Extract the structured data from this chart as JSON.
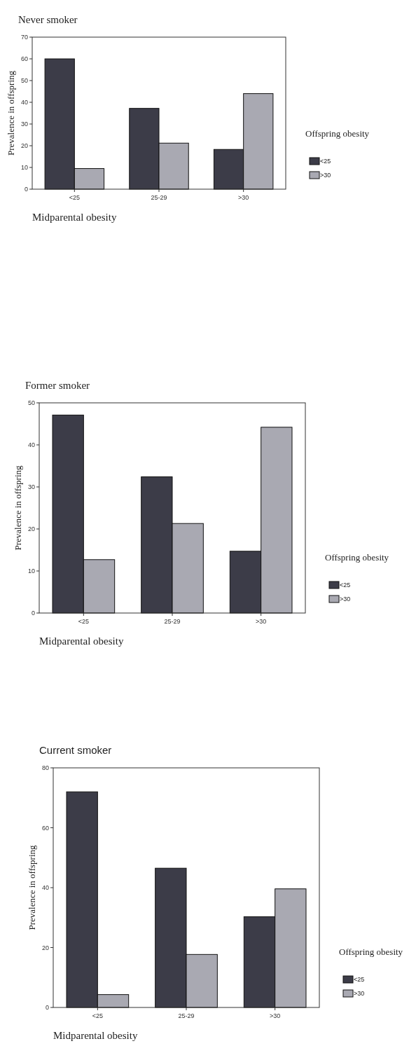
{
  "chart_data": [
    {
      "type": "bar",
      "title": "Never smoker",
      "xlabel": "Midparental obesity",
      "ylabel": "Prevalence in offspring",
      "legend_title": "Offspring obesity",
      "legend": "right",
      "categories": [
        "<25",
        "25-29",
        ">30"
      ],
      "ylim": [
        0,
        70
      ],
      "yticks": [
        0,
        10,
        20,
        30,
        40,
        50,
        60,
        70
      ],
      "series": [
        {
          "name": "<25",
          "color": "#3c3c48",
          "values": [
            60,
            37.2,
            18.3
          ]
        },
        {
          "name": ">30",
          "color": "#a9a9b2",
          "values": [
            9.5,
            21.2,
            44
          ]
        }
      ]
    },
    {
      "type": "bar",
      "title": "Former smoker",
      "xlabel": "Midparental obesity",
      "ylabel": "Prevalence in offspring",
      "legend_title": "Offspring obesity",
      "legend": "right",
      "categories": [
        "<25",
        "25-29",
        ">30"
      ],
      "ylim": [
        0,
        50
      ],
      "yticks": [
        0,
        10,
        20,
        30,
        40,
        50
      ],
      "series": [
        {
          "name": "<25",
          "color": "#3c3c48",
          "values": [
            47.1,
            32.4,
            14.7
          ]
        },
        {
          "name": ">30",
          "color": "#a9a9b2",
          "values": [
            12.7,
            21.3,
            44.2
          ]
        }
      ]
    },
    {
      "type": "bar",
      "title": "Current smoker",
      "xlabel": "Midparental obesity",
      "ylabel": "Prevalence in offspring",
      "legend_title": "Offspring obesity",
      "legend": "right",
      "categories": [
        "<25",
        "25-29",
        ">30"
      ],
      "ylim": [
        0,
        80
      ],
      "yticks": [
        0,
        20,
        40,
        60,
        80
      ],
      "series": [
        {
          "name": "<25",
          "color": "#3c3c48",
          "values": [
            72,
            46.5,
            30.3
          ]
        },
        {
          "name": ">30",
          "color": "#a9a9b2",
          "values": [
            4.3,
            17.7,
            39.6
          ]
        }
      ]
    }
  ]
}
